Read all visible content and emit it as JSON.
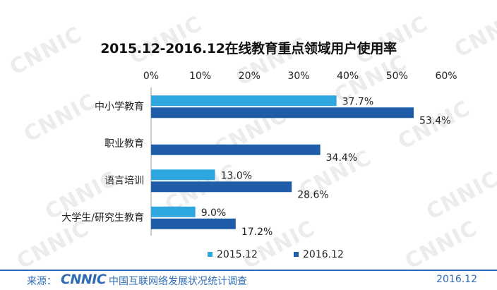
{
  "watermark": {
    "text": "CNNIC"
  },
  "chart_data": {
    "type": "bar",
    "orientation": "horizontal",
    "title": "2015.12-2016.12在线教育重点领域用户使用率",
    "categories": [
      "中小学教育",
      "职业教育",
      "语言培训",
      "大学生/研究生教育"
    ],
    "series": [
      {
        "name": "2015.12",
        "values": [
          37.7,
          null,
          13.0,
          9.0
        ],
        "labels": [
          "37.7%",
          "",
          "13.0%",
          "9.0%"
        ],
        "color": "#2ea7e0"
      },
      {
        "name": "2016.12",
        "values": [
          53.4,
          34.4,
          28.6,
          17.2
        ],
        "labels": [
          "53.4%",
          "34.4%",
          "28.6%",
          "17.2%"
        ],
        "color": "#1f5da8"
      }
    ],
    "xlim": [
      0,
      60
    ],
    "x_ticks": [
      "0%",
      "10%",
      "20%",
      "30%",
      "40%",
      "50%",
      "60%"
    ],
    "x_axis_position": "top",
    "legend_position": "bottom",
    "grid": false
  },
  "footer": {
    "source_label": "来源：",
    "logo_text": "CNNIC",
    "source_text": "中国互联网络发展状况统计调查",
    "date": "2016.12"
  }
}
